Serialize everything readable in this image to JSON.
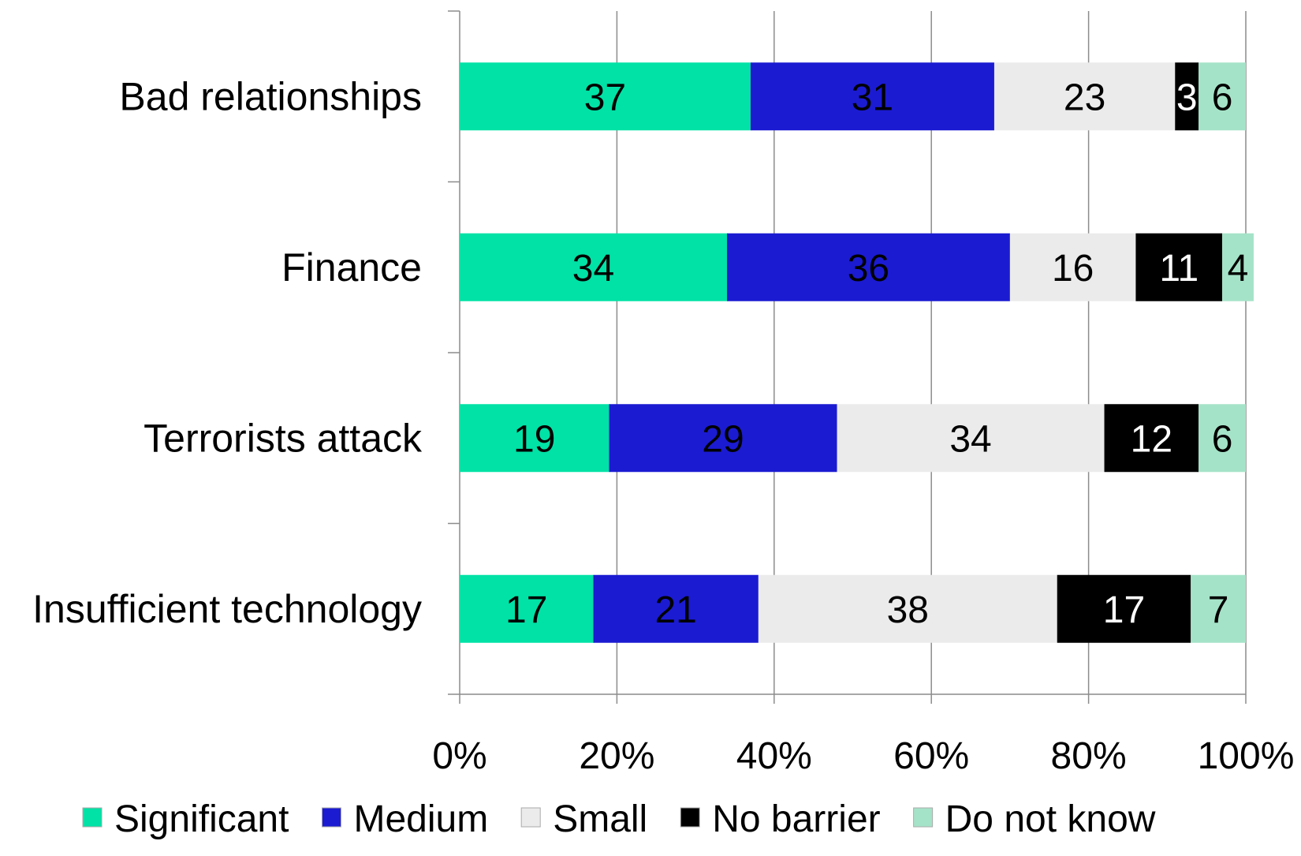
{
  "chart_data": {
    "type": "bar",
    "orientation": "horizontal",
    "stacked": "percent",
    "title": "",
    "xlabel": "",
    "ylabel": "",
    "xlim": [
      0,
      100
    ],
    "x_ticks": [
      "0%",
      "20%",
      "40%",
      "60%",
      "80%",
      "100%"
    ],
    "grid": "vertical",
    "legend_position": "bottom",
    "categories": [
      "Bad relationships",
      "Finance",
      "Terrorists attack",
      "Insufficient technology"
    ],
    "series": [
      {
        "name": "Significant",
        "color": "#00E2A6",
        "label_color": "#000000",
        "values": [
          37,
          34,
          19,
          17
        ]
      },
      {
        "name": "Medium",
        "color": "#1B1BD2",
        "label_color": "#000000",
        "values": [
          31,
          36,
          29,
          21
        ]
      },
      {
        "name": "Small",
        "color": "#EBEBEB",
        "label_color": "#000000",
        "values": [
          23,
          16,
          34,
          38
        ]
      },
      {
        "name": "No barrier",
        "color": "#000000",
        "label_color": "#ffffff",
        "values": [
          3,
          11,
          12,
          17
        ]
      },
      {
        "name": "Do not know",
        "color": "#A5E3C8",
        "label_color": "#000000",
        "values": [
          6,
          4,
          6,
          7
        ]
      }
    ]
  }
}
